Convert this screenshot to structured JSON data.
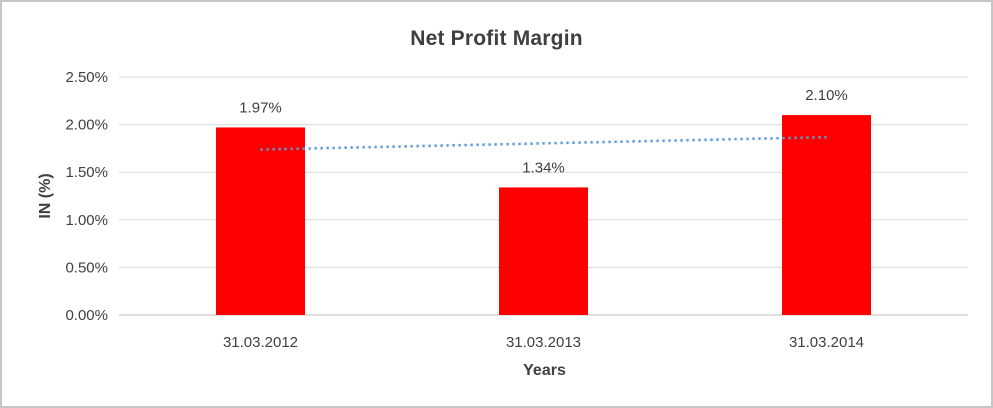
{
  "chart": {
    "title": "Net Profit Margin",
    "xlabel": "Years",
    "ylabel": "IN (%)"
  },
  "chart_data": {
    "type": "bar",
    "title": "Net Profit Margin",
    "xlabel": "Years",
    "ylabel": "IN (%)",
    "categories": [
      "31.03.2012",
      "31.03.2013",
      "31.03.2014"
    ],
    "values": [
      1.97,
      1.34,
      2.1
    ],
    "data_labels": [
      "1.97%",
      "1.34%",
      "2.10%"
    ],
    "y_ticks": [
      "0.00%",
      "0.50%",
      "1.00%",
      "1.50%",
      "2.00%",
      "2.50%"
    ],
    "ylim": [
      0,
      2.5
    ],
    "grid": true,
    "legend": "none",
    "bar_color": "#ff0000",
    "text_color": "#404040",
    "gridline_color": "#d9d9d9",
    "axis_line_color": "#bfbfbf",
    "trendline": {
      "type": "linear",
      "style": "dotted",
      "color": "#5b9bd5",
      "endpoints": [
        1.738,
        1.868
      ]
    }
  }
}
